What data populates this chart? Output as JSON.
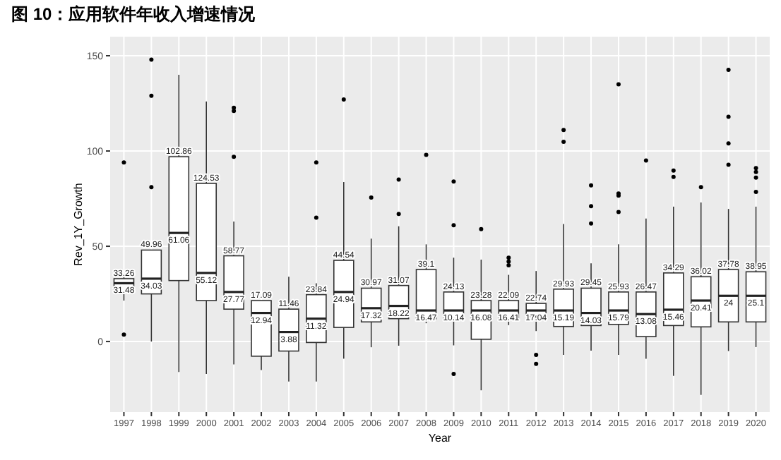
{
  "chart_data": {
    "type": "box",
    "title": "图 10：应用软件年收入增速情况",
    "xlabel": "Year",
    "ylabel": "Rev_1Y_Growth",
    "categories": [
      "1997",
      "1998",
      "1999",
      "2000",
      "2001",
      "2002",
      "2003",
      "2004",
      "2005",
      "2006",
      "2007",
      "2008",
      "2009",
      "2010",
      "2011",
      "2012",
      "2013",
      "2014",
      "2015",
      "2016",
      "2017",
      "2018",
      "2019",
      "2020"
    ],
    "ylim": [
      -37,
      160
    ],
    "yticks": [
      0,
      50,
      100,
      150
    ],
    "grid": true,
    "boxes": [
      {
        "low": 21.5,
        "q1": 26,
        "median": 30.6,
        "q3": 33,
        "high": 35,
        "outliers": [
          94,
          3.6
        ]
      },
      {
        "low": 0,
        "q1": 25,
        "median": 33,
        "q3": 48,
        "high": 48,
        "outliers": [
          148,
          129,
          81
        ]
      },
      {
        "low": -16,
        "q1": 32,
        "median": 57,
        "q3": 97,
        "high": 140
      },
      {
        "low": -17,
        "q1": 21.5,
        "median": 36,
        "q3": 83,
        "high": 126
      },
      {
        "low": -12,
        "q1": 17,
        "median": 26,
        "q3": 45,
        "high": 63,
        "outliers": [
          122.7,
          121,
          97
        ]
      },
      {
        "low": -15,
        "q1": -7.7,
        "median": 15,
        "q3": 21.5,
        "high": 21.5
      },
      {
        "low": -21,
        "q1": -5,
        "median": 5,
        "q3": 17,
        "high": 34
      },
      {
        "low": -21,
        "q1": -0.5,
        "median": 12,
        "q3": 24.6,
        "high": 30.6,
        "outliers": [
          94,
          65
        ]
      },
      {
        "low": -9,
        "q1": 7.4,
        "median": 26,
        "q3": 42.6,
        "high": 83.7,
        "outliers": [
          127
        ]
      },
      {
        "low": -3,
        "q1": 10.3,
        "median": 17.5,
        "q3": 28,
        "high": 54,
        "outliers": [
          75.6
        ]
      },
      {
        "low": -2.2,
        "q1": 12,
        "median": 18.7,
        "q3": 29.4,
        "high": 60.5,
        "outliers": [
          85,
          67
        ]
      },
      {
        "low": 9.6,
        "q1": 12,
        "median": 16.3,
        "q3": 37.8,
        "high": 51,
        "outliers": [
          98
        ]
      },
      {
        "low": -2,
        "q1": 12,
        "median": 16.3,
        "q3": 26,
        "high": 44,
        "outliers": [
          84,
          61,
          -17
        ]
      },
      {
        "low": -25.6,
        "q1": 1.2,
        "median": 16.3,
        "q3": 21.5,
        "high": 43,
        "outliers": [
          59
        ]
      },
      {
        "low": 8.6,
        "q1": 12,
        "median": 16.3,
        "q3": 21.5,
        "high": 35,
        "outliers": [
          44,
          42,
          40
        ]
      },
      {
        "low": 5.5,
        "q1": 13.4,
        "median": 16.3,
        "q3": 20,
        "high": 37,
        "outliers": [
          -7,
          -11.7
        ]
      },
      {
        "low": -7,
        "q1": 7.9,
        "median": 16.3,
        "q3": 27.5,
        "high": 61.7,
        "outliers": [
          111,
          104.8
        ]
      },
      {
        "low": -4.8,
        "q1": 8.4,
        "median": 15,
        "q3": 28,
        "high": 41,
        "outliers": [
          82,
          71,
          62
        ]
      },
      {
        "low": -7,
        "q1": 9,
        "median": 16.3,
        "q3": 26,
        "high": 51,
        "outliers": [
          135,
          77.7,
          76.6,
          68
        ]
      },
      {
        "low": -9,
        "q1": 2.6,
        "median": 14.4,
        "q3": 26,
        "high": 64.6,
        "outliers": [
          95
        ]
      },
      {
        "low": -18,
        "q1": 8.4,
        "median": 16.7,
        "q3": 36,
        "high": 70.8,
        "outliers": [
          89.7,
          86.4
        ]
      },
      {
        "low": -28,
        "q1": 7.7,
        "median": 21.5,
        "q3": 34,
        "high": 73,
        "outliers": [
          81
        ]
      },
      {
        "low": -5,
        "q1": 10.3,
        "median": 24,
        "q3": 37.8,
        "high": 69.6,
        "outliers": [
          142.6,
          118,
          104,
          92.8
        ]
      },
      {
        "low": -2.9,
        "q1": 10.3,
        "median": 24,
        "q3": 36.6,
        "high": 70.8,
        "outliers": [
          91,
          89,
          86,
          78.5
        ]
      }
    ],
    "annotations": [
      "33.26",
      "31.48",
      "49.96",
      "34.03",
      "102.86",
      "61.06",
      "124.53",
      "55.12",
      "58.77",
      "27.77",
      "17.09",
      "12.94",
      "11.46",
      "3.88",
      "23.84",
      "11.32",
      "44.54",
      "24.94",
      "30.97",
      "17.32",
      "31.07",
      "18.22",
      "39.1",
      "16.47",
      "24.13",
      "10.14",
      "23.28",
      "16.08",
      "22.09",
      "16.41",
      "22.74",
      "17.04",
      "29.93",
      "15.19",
      "29.45",
      "14.03",
      "25.93",
      "15.79",
      "26.47",
      "13.08",
      "34.29",
      "15.46",
      "36.02",
      "20.41",
      "37.78",
      "24",
      "38.95",
      "25.1"
    ]
  }
}
